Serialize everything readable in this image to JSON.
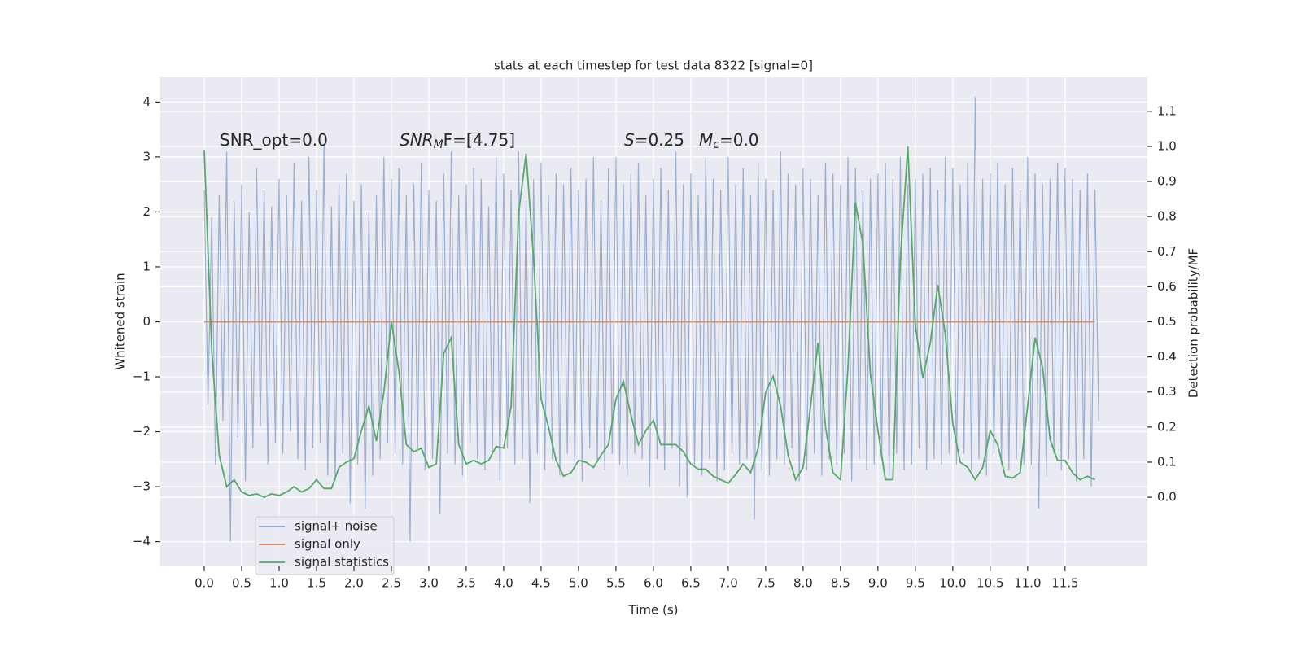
{
  "chart_data": {
    "type": "line",
    "title": "stats at each timestep for test data 8322 [signal=0]",
    "xlabel": "Time (s)",
    "ylabel": "Whitened strain",
    "y2label": "Detection probability/MF",
    "annotations": [
      [
        "SNR_opt=0.0"
      ],
      [
        "SNR",
        "M",
        "F=[4.75]"
      ],
      [
        "S",
        "=0.25"
      ],
      [
        "M",
        "c",
        "=0.0"
      ]
    ],
    "xlim": [
      -0.587,
      12.6
    ],
    "xticks": [
      {
        "value": 0,
        "label": "0.0"
      },
      0.5,
      {
        "value": 1,
        "label": "1.0"
      },
      1.5,
      {
        "value": 2,
        "label": "2.0"
      },
      2.5,
      {
        "value": 3,
        "label": "3.0"
      },
      3.5,
      {
        "value": 4,
        "label": "4.0"
      },
      4.5,
      {
        "value": 5,
        "label": "5.0"
      },
      5.5,
      {
        "value": 6,
        "label": "6.0"
      },
      6.5,
      {
        "value": 7,
        "label": "7.0"
      },
      7.5,
      {
        "value": 8,
        "label": "8.0"
      },
      8.5,
      {
        "value": 9,
        "label": "9.0"
      },
      9.5,
      {
        "value": 10,
        "label": "10.0"
      },
      10.5,
      {
        "value": 11,
        "label": "11.0"
      },
      11.5
    ],
    "ylim": [
      -4.45,
      4.45
    ],
    "yticks": [
      {
        "value": -4,
        "label": "−4"
      },
      {
        "value": -3,
        "label": "−3"
      },
      {
        "value": -2,
        "label": "−2"
      },
      {
        "value": -1,
        "label": "−1"
      },
      0,
      1,
      2,
      3,
      4
    ],
    "y2lim": [
      -0.197,
      1.197
    ],
    "y2ticks": [
      {
        "value": 0,
        "label": "0.0"
      },
      0.1,
      0.2,
      0.3,
      0.4,
      0.5,
      0.6,
      0.7,
      0.8,
      0.9,
      {
        "value": 1,
        "label": "1.0"
      },
      1.1
    ],
    "grid": true,
    "legend": "lower left",
    "series": [
      {
        "name": "signal+ noise",
        "color": "#4c72b0",
        "x": [
          0,
          0.05,
          0.1,
          0.15,
          0.2,
          0.25,
          0.3,
          0.35,
          0.4,
          0.45,
          0.5,
          0.55,
          0.6,
          0.65,
          0.7,
          0.75,
          0.8,
          0.85,
          0.9,
          0.95,
          1,
          1.05,
          1.1,
          1.15,
          1.2,
          1.25,
          1.3,
          1.35,
          1.4,
          1.45,
          1.5,
          1.55,
          1.6,
          1.65,
          1.7,
          1.75,
          1.8,
          1.85,
          1.9,
          1.95,
          2,
          2.05,
          2.1,
          2.15,
          2.2,
          2.25,
          2.3,
          2.35,
          2.4,
          2.45,
          2.5,
          2.55,
          2.6,
          2.65,
          2.7,
          2.75,
          2.8,
          2.85,
          2.9,
          2.95,
          3,
          3.05,
          3.1,
          3.15,
          3.2,
          3.25,
          3.3,
          3.35,
          3.4,
          3.45,
          3.5,
          3.55,
          3.6,
          3.65,
          3.7,
          3.75,
          3.8,
          3.85,
          3.9,
          3.95,
          4,
          4.05,
          4.1,
          4.15,
          4.2,
          4.25,
          4.3,
          4.35,
          4.4,
          4.45,
          4.5,
          4.55,
          4.6,
          4.65,
          4.7,
          4.75,
          4.8,
          4.85,
          4.9,
          4.95,
          5,
          5.05,
          5.1,
          5.15,
          5.2,
          5.25,
          5.3,
          5.35,
          5.4,
          5.45,
          5.5,
          5.55,
          5.6,
          5.65,
          5.7,
          5.75,
          5.8,
          5.85,
          5.9,
          5.95,
          6,
          6.05,
          6.1,
          6.15,
          6.2,
          6.25,
          6.3,
          6.35,
          6.4,
          6.45,
          6.5,
          6.55,
          6.6,
          6.65,
          6.7,
          6.75,
          6.8,
          6.85,
          6.9,
          6.95,
          7,
          7.05,
          7.1,
          7.15,
          7.2,
          7.25,
          7.3,
          7.35,
          7.4,
          7.45,
          7.5,
          7.55,
          7.6,
          7.65,
          7.7,
          7.75,
          7.8,
          7.85,
          7.9,
          7.95,
          8,
          8.05,
          8.1,
          8.15,
          8.2,
          8.25,
          8.3,
          8.35,
          8.4,
          8.45,
          8.5,
          8.55,
          8.6,
          8.65,
          8.7,
          8.75,
          8.8,
          8.85,
          8.9,
          8.95,
          9,
          9.05,
          9.1,
          9.15,
          9.2,
          9.25,
          9.3,
          9.35,
          9.4,
          9.45,
          9.5,
          9.55,
          9.6,
          9.65,
          9.7,
          9.75,
          9.8,
          9.85,
          9.9,
          9.95,
          10,
          10.05,
          10.1,
          10.15,
          10.2,
          10.25,
          10.3,
          10.35,
          10.4,
          10.45,
          10.5,
          10.55,
          10.6,
          10.65,
          10.7,
          10.75,
          10.8,
          10.85,
          10.9,
          10.95,
          11,
          11.05,
          11.1,
          11.15,
          11.2,
          11.25,
          11.3,
          11.35,
          11.4,
          11.45,
          11.5,
          11.55,
          11.6,
          11.65,
          11.7,
          11.75,
          11.8,
          11.85,
          11.9,
          11.95
        ],
        "values": [
          2.4,
          -1.5,
          1.9,
          -2.6,
          2.3,
          -1.8,
          3.1,
          -4.0,
          2.2,
          -2.1,
          2.5,
          -2.9,
          2.0,
          -2.3,
          2.8,
          -1.9,
          2.4,
          -2.6,
          2.1,
          -2.2,
          2.6,
          -2.4,
          2.3,
          -2.0,
          2.9,
          -2.5,
          2.2,
          -2.7,
          3.0,
          -2.3,
          2.4,
          -2.2,
          3.2,
          -2.8,
          2.1,
          -2.9,
          2.5,
          -2.4,
          2.7,
          -3.3,
          2.2,
          -2.6,
          2.5,
          -3.4,
          2.0,
          -2.8,
          2.3,
          -2.5,
          3.0,
          -2.2,
          2.6,
          -2.4,
          2.8,
          -2.6,
          2.3,
          -4.0,
          2.5,
          -2.3,
          2.9,
          -2.7,
          2.4,
          -2.5,
          2.2,
          -3.5,
          2.7,
          -2.4,
          3.1,
          -2.6,
          2.3,
          -2.8,
          2.5,
          -2.2,
          2.8,
          -2.5,
          2.6,
          -2.7,
          2.1,
          -2.4,
          3.0,
          -2.9,
          2.7,
          -2.3,
          2.4,
          -2.6,
          3.1,
          -2.5,
          2.2,
          -3.3,
          2.6,
          -2.4,
          2.9,
          -2.7,
          2.3,
          -2.5,
          2.7,
          -2.8,
          2.5,
          -2.4,
          2.8,
          -2.6,
          2.4,
          -2.9,
          2.6,
          -2.3,
          3.0,
          -2.5,
          2.2,
          -2.7,
          2.8,
          -2.4,
          3.0,
          -2.6,
          2.5,
          -2.8,
          2.7,
          -2.4,
          2.9,
          -2.5,
          2.3,
          -3.0,
          2.6,
          -2.5,
          2.8,
          -2.7,
          2.4,
          -2.3,
          3.1,
          -3.0,
          2.5,
          -3.2,
          2.7,
          -2.6,
          2.3,
          -2.8,
          3.0,
          -2.5,
          2.6,
          -2.9,
          2.4,
          -2.7,
          3.0,
          -2.4,
          2.5,
          -2.6,
          2.8,
          -2.5,
          2.3,
          -3.6,
          2.9,
          -2.7,
          2.6,
          -2.8,
          2.4,
          -2.5,
          3.1,
          -2.6,
          2.7,
          -2.3,
          2.5,
          -2.9,
          2.8,
          -2.7,
          2.6,
          -2.4,
          2.3,
          -2.8,
          2.9,
          -2.5,
          2.7,
          -2.6,
          2.5,
          -2.4,
          3.0,
          -2.9,
          2.8,
          -2.5,
          2.4,
          -2.7,
          2.6,
          -2.6,
          2.7,
          -2.5,
          2.9,
          -2.8,
          2.6,
          -2.4,
          3.0,
          -2.7,
          2.5,
          -2.6,
          2.6,
          -2.3,
          2.7,
          -2.7,
          2.8,
          -2.5,
          2.4,
          -2.6,
          3.0,
          -2.4,
          2.8,
          -2.6,
          2.5,
          -2.4,
          2.9,
          -2.7,
          4.1,
          -2.5,
          2.6,
          -2.8,
          2.7,
          -2.4,
          2.9,
          -2.6,
          2.5,
          -2.7,
          2.8,
          -2.5,
          2.4,
          -2.6,
          3.0,
          -2.6,
          2.7,
          -3.4,
          2.5,
          -2.8,
          2.6,
          -2.4,
          2.9,
          -2.7,
          2.8,
          -2.5,
          2.6,
          -2.9,
          2.4,
          -2.5,
          2.7,
          -3.0,
          2.4,
          -1.8
        ]
      },
      {
        "name": "signal only",
        "color": "#dd8452",
        "x": [
          0,
          0.1,
          0.2,
          0.3,
          0.4,
          0.5,
          0.6,
          0.7,
          0.8,
          0.9,
          1,
          1.1,
          1.2,
          1.3,
          1.4,
          1.5,
          1.6,
          1.7,
          1.8,
          1.9,
          2,
          2.1,
          2.2,
          2.3,
          2.4,
          2.5,
          2.6,
          2.7,
          2.8,
          2.9,
          3,
          3.1,
          3.2,
          3.3,
          3.4,
          3.5,
          3.6,
          3.7,
          3.8,
          3.9,
          4,
          4.1,
          4.2,
          4.3,
          4.4,
          4.5,
          4.6,
          4.7,
          4.8,
          4.9,
          5,
          5.1,
          5.2,
          5.3,
          5.4,
          5.5,
          5.6,
          5.7,
          5.8,
          5.9,
          6,
          6.1,
          6.2,
          6.3,
          6.4,
          6.5,
          6.6,
          6.7,
          6.8,
          6.9,
          7,
          7.1,
          7.2,
          7.3,
          7.4,
          7.5,
          7.6,
          7.7,
          7.8,
          7.9,
          8,
          8.1,
          8.2,
          8.3,
          8.4,
          8.5,
          8.6,
          8.7,
          8.8,
          8.9,
          9,
          9.1,
          9.2,
          9.3,
          9.4,
          9.5,
          9.6,
          9.7,
          9.8,
          9.9,
          10,
          10.1,
          10.2,
          10.3,
          10.4,
          10.5,
          10.6,
          10.7,
          10.8,
          10.9,
          11,
          11.1,
          11.2,
          11.3,
          11.4,
          11.5,
          11.6,
          11.7,
          11.8,
          11.9
        ],
        "values": [
          0,
          0,
          0,
          0,
          0,
          0,
          0,
          0,
          0,
          0,
          0,
          0,
          0,
          0,
          0,
          0,
          0,
          0,
          0,
          0,
          0,
          0,
          0,
          0,
          0,
          0,
          0,
          0,
          0,
          0,
          0,
          0,
          0,
          0,
          0,
          0,
          0,
          0,
          0,
          0,
          0,
          0,
          0,
          0,
          0,
          0,
          0,
          0,
          0,
          0,
          0,
          0,
          0,
          0,
          0,
          0,
          0,
          0,
          0,
          0,
          0,
          0,
          0,
          0,
          0,
          0,
          0,
          0,
          0,
          0,
          0,
          0,
          0,
          0,
          0,
          0,
          0,
          0,
          0,
          0,
          0,
          0,
          0,
          0,
          0,
          0,
          0,
          0,
          0,
          0,
          0,
          0,
          0,
          0,
          0,
          0,
          0,
          0,
          0,
          0,
          0,
          0,
          0,
          0,
          0,
          0,
          0,
          0,
          0,
          0,
          0,
          0,
          0,
          0,
          0,
          0,
          0,
          0,
          0,
          0
        ]
      },
      {
        "name": "signal statistics",
        "color": "#55a868",
        "axis": "y2",
        "x": [
          0,
          0.1,
          0.2,
          0.3,
          0.4,
          0.5,
          0.6,
          0.7,
          0.8,
          0.9,
          1,
          1.1,
          1.2,
          1.3,
          1.4,
          1.5,
          1.6,
          1.7,
          1.8,
          1.9,
          2,
          2.1,
          2.2,
          2.3,
          2.4,
          2.5,
          2.6,
          2.7,
          2.8,
          2.9,
          3,
          3.1,
          3.2,
          3.3,
          3.4,
          3.5,
          3.6,
          3.7,
          3.8,
          3.9,
          4,
          4.1,
          4.2,
          4.3,
          4.4,
          4.5,
          4.6,
          4.7,
          4.8,
          4.9,
          5,
          5.1,
          5.2,
          5.3,
          5.4,
          5.5,
          5.6,
          5.7,
          5.8,
          5.9,
          6,
          6.1,
          6.2,
          6.3,
          6.4,
          6.5,
          6.6,
          6.7,
          6.8,
          6.9,
          7,
          7.1,
          7.2,
          7.3,
          7.4,
          7.5,
          7.6,
          7.7,
          7.8,
          7.9,
          8,
          8.1,
          8.2,
          8.3,
          8.4,
          8.5,
          8.6,
          8.7,
          8.8,
          8.9,
          9,
          9.1,
          9.2,
          9.3,
          9.4,
          9.5,
          9.6,
          9.7,
          9.8,
          9.9,
          10,
          10.1,
          10.2,
          10.3,
          10.4,
          10.5,
          10.6,
          10.7,
          10.8,
          10.9,
          11,
          11.1,
          11.2,
          11.3,
          11.4,
          11.5,
          11.6,
          11.7,
          11.8,
          11.9
        ],
        "values": [
          0.99,
          0.42,
          0.12,
          0.03,
          0.05,
          0.015,
          0.005,
          0.01,
          0.0,
          0.01,
          0.005,
          0.015,
          0.03,
          0.015,
          0.025,
          0.05,
          0.025,
          0.025,
          0.085,
          0.1,
          0.11,
          0.19,
          0.26,
          0.16,
          0.3,
          0.5,
          0.36,
          0.15,
          0.13,
          0.14,
          0.085,
          0.095,
          0.41,
          0.455,
          0.15,
          0.095,
          0.105,
          0.095,
          0.105,
          0.145,
          0.14,
          0.26,
          0.81,
          0.98,
          0.68,
          0.28,
          0.2,
          0.105,
          0.06,
          0.07,
          0.105,
          0.1,
          0.085,
          0.12,
          0.15,
          0.28,
          0.33,
          0.235,
          0.15,
          0.19,
          0.22,
          0.15,
          0.15,
          0.15,
          0.13,
          0.095,
          0.08,
          0.08,
          0.06,
          0.05,
          0.04,
          0.065,
          0.095,
          0.07,
          0.14,
          0.3,
          0.345,
          0.26,
          0.12,
          0.05,
          0.085,
          0.26,
          0.44,
          0.2,
          0.07,
          0.05,
          0.37,
          0.84,
          0.72,
          0.35,
          0.19,
          0.05,
          0.05,
          0.68,
          1.0,
          0.49,
          0.34,
          0.44,
          0.605,
          0.465,
          0.21,
          0.1,
          0.085,
          0.05,
          0.085,
          0.19,
          0.15,
          0.06,
          0.055,
          0.07,
          0.26,
          0.455,
          0.37,
          0.165,
          0.105,
          0.105,
          0.07,
          0.05,
          0.06,
          0.05
        ]
      }
    ]
  }
}
